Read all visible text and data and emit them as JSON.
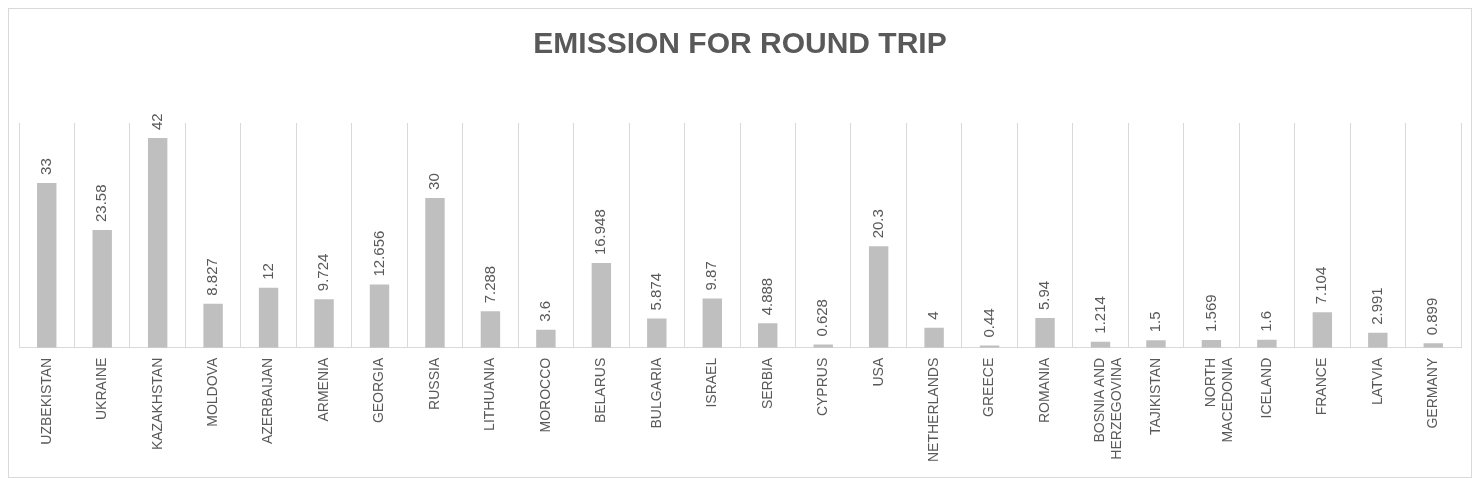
{
  "chart_data": {
    "type": "bar",
    "title": "EMISSION FOR ROUND TRIP",
    "categories": [
      "UZBEKISTAN",
      "UKRAINE",
      "KAZAKHSTAN",
      "MOLDOVA",
      "AZERBAIJAN",
      "ARMENIA",
      "GEORGIA",
      "RUSSIA",
      "LITHUANIA",
      "MOROCCO",
      "BELARUS",
      "BULGARIA",
      "ISRAEL",
      "SERBIA",
      "CYPRUS",
      "USA",
      "NETHERLANDS",
      "GREECE",
      "ROMANIA",
      "BOSNIA AND HERZEGOVINA",
      "TAJIKISTAN",
      "NORTH MACEDONIA",
      "ICELAND",
      "FRANCE",
      "LATVIA",
      "GERMANY"
    ],
    "values": [
      33,
      23.58,
      42,
      8.827,
      12,
      9.724,
      12.656,
      30,
      7.288,
      3.6,
      16.948,
      5.874,
      9.87,
      4.888,
      0.628,
      20.3,
      4,
      0.44,
      5.94,
      1.214,
      1.5,
      1.569,
      1.6,
      7.104,
      2.991,
      0.899
    ],
    "color": "#bfbfbf",
    "data_labels": true,
    "grid": "x",
    "legend": false
  }
}
